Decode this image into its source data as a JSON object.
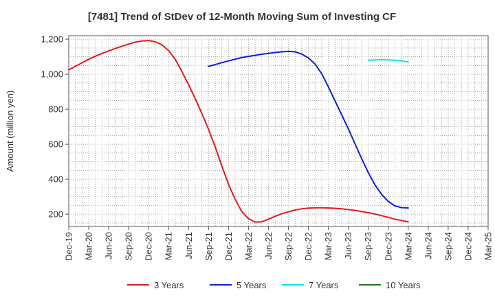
{
  "chart_data": {
    "type": "line",
    "title": "[7481]  Trend of StDev of 12-Month Moving Sum of Investing CF",
    "xlabel": "",
    "ylabel": "Amount (million yen)",
    "ylim": [
      130,
      1220
    ],
    "yticks": [
      200,
      400,
      600,
      800,
      1000,
      1200
    ],
    "ytick_labels": [
      "200",
      "400",
      "600",
      "800",
      "1,000",
      "1,200"
    ],
    "x_start": "Dec-19",
    "x_end": "Mar-25",
    "x_tick_labels": [
      "Dec-19",
      "Mar-20",
      "Jun-20",
      "Sep-20",
      "Dec-20",
      "Mar-21",
      "Jun-21",
      "Sep-21",
      "Dec-21",
      "Mar-22",
      "Jun-22",
      "Sep-22",
      "Dec-22",
      "Mar-23",
      "Jun-23",
      "Sep-23",
      "Dec-23",
      "Mar-24",
      "Jun-24",
      "Sep-24",
      "Dec-24",
      "Mar-25"
    ],
    "grid": true,
    "legend_position": "bottom",
    "series": [
      {
        "name": "3 Years",
        "color": "#e31a1c",
        "points": [
          [
            "Dec-19",
            1025
          ],
          [
            "Jan-20",
            1045
          ],
          [
            "Feb-20",
            1065
          ],
          [
            "Mar-20",
            1085
          ],
          [
            "Apr-20",
            1103
          ],
          [
            "May-20",
            1118
          ],
          [
            "Jun-20",
            1133
          ],
          [
            "Jul-20",
            1147
          ],
          [
            "Aug-20",
            1160
          ],
          [
            "Sep-20",
            1172
          ],
          [
            "Oct-20",
            1183
          ],
          [
            "Nov-20",
            1190
          ],
          [
            "Dec-20",
            1192
          ],
          [
            "Jan-21",
            1185
          ],
          [
            "Feb-21",
            1168
          ],
          [
            "Mar-21",
            1135
          ],
          [
            "Apr-21",
            1085
          ],
          [
            "May-21",
            1015
          ],
          [
            "Jun-21",
            940
          ],
          [
            "Jul-21",
            860
          ],
          [
            "Aug-21",
            775
          ],
          [
            "Sep-21",
            685
          ],
          [
            "Oct-21",
            585
          ],
          [
            "Nov-21",
            475
          ],
          [
            "Dec-21",
            370
          ],
          [
            "Jan-22",
            285
          ],
          [
            "Feb-22",
            215
          ],
          [
            "Mar-22",
            175
          ],
          [
            "Apr-22",
            155
          ],
          [
            "May-22",
            157
          ],
          [
            "Jun-22",
            172
          ],
          [
            "Jul-22",
            188
          ],
          [
            "Aug-22",
            202
          ],
          [
            "Sep-22",
            214
          ],
          [
            "Oct-22",
            224
          ],
          [
            "Nov-22",
            231
          ],
          [
            "Dec-22",
            235
          ],
          [
            "Jan-23",
            237
          ],
          [
            "Feb-23",
            237
          ],
          [
            "Mar-23",
            236
          ],
          [
            "Apr-23",
            234
          ],
          [
            "May-23",
            231
          ],
          [
            "Jun-23",
            227
          ],
          [
            "Jul-23",
            222
          ],
          [
            "Aug-23",
            216
          ],
          [
            "Sep-23",
            209
          ],
          [
            "Oct-23",
            201
          ],
          [
            "Nov-23",
            192
          ],
          [
            "Dec-23",
            182
          ],
          [
            "Jan-24",
            172
          ],
          [
            "Feb-24",
            164
          ],
          [
            "Mar-24",
            157
          ]
        ]
      },
      {
        "name": "5 Years",
        "color": "#0a1ed7",
        "points": [
          [
            "Sep-21",
            1045
          ],
          [
            "Oct-21",
            1055
          ],
          [
            "Nov-21",
            1066
          ],
          [
            "Dec-21",
            1076
          ],
          [
            "Jan-22",
            1086
          ],
          [
            "Feb-22",
            1095
          ],
          [
            "Mar-22",
            1102
          ],
          [
            "Apr-22",
            1108
          ],
          [
            "May-22",
            1114
          ],
          [
            "Jun-22",
            1119
          ],
          [
            "Jul-22",
            1124
          ],
          [
            "Aug-22",
            1128
          ],
          [
            "Sep-22",
            1131
          ],
          [
            "Oct-22",
            1128
          ],
          [
            "Nov-22",
            1115
          ],
          [
            "Dec-22",
            1093
          ],
          [
            "Jan-23",
            1058
          ],
          [
            "Feb-23",
            1003
          ],
          [
            "Mar-23",
            928
          ],
          [
            "Apr-23",
            848
          ],
          [
            "May-23",
            768
          ],
          [
            "Jun-23",
            688
          ],
          [
            "Jul-23",
            603
          ],
          [
            "Aug-23",
            518
          ],
          [
            "Sep-23",
            438
          ],
          [
            "Oct-23",
            368
          ],
          [
            "Nov-23",
            313
          ],
          [
            "Dec-23",
            273
          ],
          [
            "Jan-24",
            248
          ],
          [
            "Feb-24",
            238
          ],
          [
            "Mar-24",
            236
          ]
        ]
      },
      {
        "name": "7 Years",
        "color": "#00e5ee",
        "points": [
          [
            "Sep-23",
            1080
          ],
          [
            "Oct-23",
            1082
          ],
          [
            "Nov-23",
            1083
          ],
          [
            "Dec-23",
            1082
          ],
          [
            "Jan-24",
            1080
          ],
          [
            "Feb-24",
            1076
          ],
          [
            "Mar-24",
            1070
          ]
        ]
      },
      {
        "name": "10 Years",
        "color": "#1a7a1a",
        "points": []
      }
    ]
  }
}
